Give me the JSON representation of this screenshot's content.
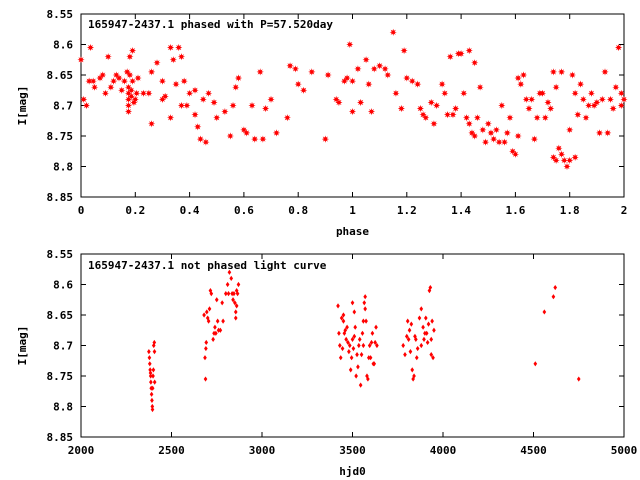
{
  "chart_data": [
    {
      "type": "scatter",
      "title": "165947-2437.1 phased with P=57.520day",
      "xlabel": "phase",
      "ylabel": "I[mag]",
      "xlim": [
        0,
        2
      ],
      "ylim": [
        8.85,
        8.55
      ],
      "y_inverted": true,
      "xticks": [
        "0",
        "0.2",
        "0.4",
        "0.6",
        "0.8",
        "1",
        "1.2",
        "1.4",
        "1.6",
        "1.8",
        "2"
      ],
      "yticks": [
        "8.55",
        "8.6",
        "8.65",
        "8.7",
        "8.75",
        "8.8",
        "8.85"
      ],
      "grid": false,
      "marker": "star",
      "color": "#ff0000",
      "points": [
        [
          0.0,
          8.625
        ],
        [
          0.01,
          8.69
        ],
        [
          0.02,
          8.7
        ],
        [
          0.03,
          8.66
        ],
        [
          0.035,
          8.605
        ],
        [
          0.045,
          8.66
        ],
        [
          0.05,
          8.67
        ],
        [
          0.07,
          8.655
        ],
        [
          0.08,
          8.65
        ],
        [
          0.09,
          8.68
        ],
        [
          0.1,
          8.62
        ],
        [
          0.11,
          8.67
        ],
        [
          0.12,
          8.66
        ],
        [
          0.13,
          8.65
        ],
        [
          0.14,
          8.655
        ],
        [
          0.15,
          8.675
        ],
        [
          0.16,
          8.66
        ],
        [
          0.17,
          8.645
        ],
        [
          0.175,
          8.67
        ],
        [
          0.175,
          8.68
        ],
        [
          0.175,
          8.69
        ],
        [
          0.175,
          8.7
        ],
        [
          0.175,
          8.71
        ],
        [
          0.18,
          8.62
        ],
        [
          0.18,
          8.65
        ],
        [
          0.185,
          8.675
        ],
        [
          0.185,
          8.685
        ],
        [
          0.19,
          8.61
        ],
        [
          0.19,
          8.66
        ],
        [
          0.195,
          8.695
        ],
        [
          0.2,
          8.69
        ],
        [
          0.205,
          8.68
        ],
        [
          0.21,
          8.655
        ],
        [
          0.23,
          8.68
        ],
        [
          0.25,
          8.68
        ],
        [
          0.26,
          8.645
        ],
        [
          0.26,
          8.73
        ],
        [
          0.28,
          8.63
        ],
        [
          0.3,
          8.66
        ],
        [
          0.3,
          8.69
        ],
        [
          0.31,
          8.685
        ],
        [
          0.33,
          8.605
        ],
        [
          0.33,
          8.72
        ],
        [
          0.34,
          8.625
        ],
        [
          0.35,
          8.665
        ],
        [
          0.36,
          8.605
        ],
        [
          0.37,
          8.62
        ],
        [
          0.37,
          8.7
        ],
        [
          0.38,
          8.66
        ],
        [
          0.39,
          8.7
        ],
        [
          0.4,
          8.68
        ],
        [
          0.42,
          8.675
        ],
        [
          0.42,
          8.715
        ],
        [
          0.43,
          8.735
        ],
        [
          0.44,
          8.755
        ],
        [
          0.45,
          8.69
        ],
        [
          0.46,
          8.76
        ],
        [
          0.47,
          8.68
        ],
        [
          0.49,
          8.695
        ],
        [
          0.5,
          8.72
        ],
        [
          0.53,
          8.71
        ],
        [
          0.55,
          8.75
        ],
        [
          0.56,
          8.7
        ],
        [
          0.57,
          8.67
        ],
        [
          0.58,
          8.655
        ],
        [
          0.6,
          8.74
        ],
        [
          0.61,
          8.745
        ],
        [
          0.63,
          8.7
        ],
        [
          0.64,
          8.755
        ],
        [
          0.66,
          8.645
        ],
        [
          0.67,
          8.755
        ],
        [
          0.68,
          8.705
        ],
        [
          0.7,
          8.69
        ],
        [
          0.72,
          8.745
        ],
        [
          0.76,
          8.72
        ],
        [
          0.77,
          8.635
        ],
        [
          0.79,
          8.64
        ],
        [
          0.8,
          8.665
        ],
        [
          0.82,
          8.675
        ],
        [
          0.85,
          8.645
        ],
        [
          0.9,
          8.755
        ],
        [
          0.91,
          8.65
        ],
        [
          0.94,
          8.69
        ],
        [
          0.95,
          8.695
        ],
        [
          0.97,
          8.66
        ],
        [
          0.98,
          8.655
        ],
        [
          0.99,
          8.6
        ],
        [
          1.0,
          8.66
        ],
        [
          1.0,
          8.71
        ],
        [
          1.02,
          8.64
        ],
        [
          1.03,
          8.695
        ],
        [
          1.05,
          8.625
        ],
        [
          1.06,
          8.665
        ],
        [
          1.07,
          8.71
        ],
        [
          1.08,
          8.64
        ],
        [
          1.1,
          8.635
        ],
        [
          1.12,
          8.64
        ],
        [
          1.13,
          8.65
        ],
        [
          1.15,
          8.58
        ],
        [
          1.16,
          8.68
        ],
        [
          1.18,
          8.705
        ],
        [
          1.19,
          8.61
        ],
        [
          1.2,
          8.655
        ],
        [
          1.22,
          8.66
        ],
        [
          1.24,
          8.665
        ],
        [
          1.25,
          8.705
        ],
        [
          1.26,
          8.715
        ],
        [
          1.27,
          8.72
        ],
        [
          1.29,
          8.695
        ],
        [
          1.3,
          8.73
        ],
        [
          1.31,
          8.7
        ],
        [
          1.33,
          8.665
        ],
        [
          1.34,
          8.68
        ],
        [
          1.35,
          8.715
        ],
        [
          1.36,
          8.62
        ],
        [
          1.37,
          8.715
        ],
        [
          1.38,
          8.705
        ],
        [
          1.39,
          8.615
        ],
        [
          1.4,
          8.615
        ],
        [
          1.41,
          8.68
        ],
        [
          1.42,
          8.72
        ],
        [
          1.43,
          8.73
        ],
        [
          1.43,
          8.61
        ],
        [
          1.44,
          8.745
        ],
        [
          1.45,
          8.63
        ],
        [
          1.45,
          8.75
        ],
        [
          1.46,
          8.72
        ],
        [
          1.47,
          8.67
        ],
        [
          1.48,
          8.74
        ],
        [
          1.49,
          8.76
        ],
        [
          1.5,
          8.73
        ],
        [
          1.51,
          8.745
        ],
        [
          1.52,
          8.755
        ],
        [
          1.53,
          8.74
        ],
        [
          1.54,
          8.76
        ],
        [
          1.55,
          8.7
        ],
        [
          1.56,
          8.76
        ],
        [
          1.57,
          8.745
        ],
        [
          1.58,
          8.72
        ],
        [
          1.59,
          8.775
        ],
        [
          1.6,
          8.78
        ],
        [
          1.61,
          8.75
        ],
        [
          1.61,
          8.655
        ],
        [
          1.62,
          8.665
        ],
        [
          1.63,
          8.65
        ],
        [
          1.64,
          8.69
        ],
        [
          1.65,
          8.705
        ],
        [
          1.66,
          8.69
        ],
        [
          1.67,
          8.755
        ],
        [
          1.68,
          8.72
        ],
        [
          1.69,
          8.68
        ],
        [
          1.7,
          8.68
        ],
        [
          1.71,
          8.72
        ],
        [
          1.72,
          8.695
        ],
        [
          1.73,
          8.705
        ],
        [
          1.74,
          8.645
        ],
        [
          1.74,
          8.785
        ],
        [
          1.75,
          8.79
        ],
        [
          1.75,
          8.67
        ],
        [
          1.76,
          8.77
        ],
        [
          1.77,
          8.78
        ],
        [
          1.77,
          8.645
        ],
        [
          1.78,
          8.79
        ],
        [
          1.79,
          8.8
        ],
        [
          1.8,
          8.79
        ],
        [
          1.8,
          8.74
        ],
        [
          1.81,
          8.65
        ],
        [
          1.82,
          8.785
        ],
        [
          1.82,
          8.68
        ],
        [
          1.83,
          8.715
        ],
        [
          1.84,
          8.665
        ],
        [
          1.85,
          8.69
        ],
        [
          1.86,
          8.72
        ],
        [
          1.87,
          8.7
        ],
        [
          1.88,
          8.68
        ],
        [
          1.89,
          8.7
        ],
        [
          1.9,
          8.695
        ],
        [
          1.91,
          8.745
        ],
        [
          1.92,
          8.69
        ],
        [
          1.93,
          8.645
        ],
        [
          1.94,
          8.745
        ],
        [
          1.95,
          8.69
        ],
        [
          1.96,
          8.705
        ],
        [
          1.97,
          8.67
        ],
        [
          1.98,
          8.605
        ],
        [
          1.99,
          8.68
        ],
        [
          2.0,
          8.69
        ],
        [
          1.99,
          8.7
        ]
      ]
    },
    {
      "type": "scatter",
      "title": "165947-2437.1 not phased light curve",
      "xlabel": "hjd0",
      "ylabel": "I[mag]",
      "xlim": [
        2000,
        5000
      ],
      "ylim": [
        8.85,
        8.55
      ],
      "y_inverted": true,
      "xticks": [
        "2000",
        "2500",
        "3000",
        "3500",
        "4000",
        "4500",
        "5000"
      ],
      "yticks": [
        "8.55",
        "8.6",
        "8.65",
        "8.7",
        "8.75",
        "8.8",
        "8.85"
      ],
      "grid": false,
      "marker": "diamond",
      "color": "#ff0000",
      "points": [
        [
          2375,
          8.71
        ],
        [
          2378,
          8.72
        ],
        [
          2380,
          8.73
        ],
        [
          2382,
          8.74
        ],
        [
          2384,
          8.745
        ],
        [
          2385,
          8.75
        ],
        [
          2386,
          8.76
        ],
        [
          2388,
          8.77
        ],
        [
          2390,
          8.78
        ],
        [
          2392,
          8.79
        ],
        [
          2394,
          8.8
        ],
        [
          2395,
          8.805
        ],
        [
          2396,
          8.77
        ],
        [
          2398,
          8.75
        ],
        [
          2400,
          8.74
        ],
        [
          2402,
          8.7
        ],
        [
          2405,
          8.695
        ],
        [
          2406,
          8.71
        ],
        [
          2407,
          8.76
        ],
        [
          2680,
          8.65
        ],
        [
          2685,
          8.72
        ],
        [
          2688,
          8.755
        ],
        [
          2690,
          8.705
        ],
        [
          2692,
          8.695
        ],
        [
          2695,
          8.645
        ],
        [
          2700,
          8.655
        ],
        [
          2705,
          8.66
        ],
        [
          2710,
          8.64
        ],
        [
          2715,
          8.61
        ],
        [
          2720,
          8.615
        ],
        [
          2730,
          8.69
        ],
        [
          2735,
          8.68
        ],
        [
          2740,
          8.67
        ],
        [
          2745,
          8.68
        ],
        [
          2750,
          8.625
        ],
        [
          2755,
          8.66
        ],
        [
          2760,
          8.675
        ],
        [
          2770,
          8.675
        ],
        [
          2780,
          8.63
        ],
        [
          2785,
          8.66
        ],
        [
          2800,
          8.615
        ],
        [
          2810,
          8.6
        ],
        [
          2815,
          8.615
        ],
        [
          2820,
          8.58
        ],
        [
          2830,
          8.59
        ],
        [
          2835,
          8.615
        ],
        [
          2840,
          8.625
        ],
        [
          2845,
          8.615
        ],
        [
          2850,
          8.63
        ],
        [
          2855,
          8.645
        ],
        [
          2860,
          8.61
        ],
        [
          2865,
          8.615
        ],
        [
          2870,
          8.6
        ],
        [
          2860,
          8.635
        ],
        [
          2855,
          8.655
        ],
        [
          3420,
          8.635
        ],
        [
          3425,
          8.68
        ],
        [
          3430,
          8.7
        ],
        [
          3435,
          8.72
        ],
        [
          3440,
          8.655
        ],
        [
          3445,
          8.705
        ],
        [
          3450,
          8.66
        ],
        [
          3455,
          8.68
        ],
        [
          3460,
          8.675
        ],
        [
          3465,
          8.69
        ],
        [
          3470,
          8.67
        ],
        [
          3475,
          8.695
        ],
        [
          3480,
          8.71
        ],
        [
          3485,
          8.7
        ],
        [
          3490,
          8.74
        ],
        [
          3495,
          8.72
        ],
        [
          3500,
          8.69
        ],
        [
          3505,
          8.705
        ],
        [
          3510,
          8.685
        ],
        [
          3515,
          8.67
        ],
        [
          3520,
          8.75
        ],
        [
          3525,
          8.715
        ],
        [
          3530,
          8.735
        ],
        [
          3535,
          8.7
        ],
        [
          3540,
          8.69
        ],
        [
          3545,
          8.765
        ],
        [
          3550,
          8.715
        ],
        [
          3555,
          8.68
        ],
        [
          3560,
          8.7
        ],
        [
          3565,
          8.63
        ],
        [
          3570,
          8.64
        ],
        [
          3575,
          8.66
        ],
        [
          3580,
          8.75
        ],
        [
          3585,
          8.755
        ],
        [
          3590,
          8.72
        ],
        [
          3595,
          8.7
        ],
        [
          3600,
          8.72
        ],
        [
          3605,
          8.695
        ],
        [
          3610,
          8.68
        ],
        [
          3615,
          8.73
        ],
        [
          3620,
          8.73
        ],
        [
          3625,
          8.695
        ],
        [
          3630,
          8.67
        ],
        [
          3635,
          8.7
        ],
        [
          3500,
          8.63
        ],
        [
          3510,
          8.645
        ],
        [
          3450,
          8.65
        ],
        [
          3560,
          8.66
        ],
        [
          3570,
          8.62
        ],
        [
          3780,
          8.7
        ],
        [
          3790,
          8.715
        ],
        [
          3800,
          8.685
        ],
        [
          3805,
          8.66
        ],
        [
          3810,
          8.69
        ],
        [
          3815,
          8.675
        ],
        [
          3820,
          8.71
        ],
        [
          3825,
          8.665
        ],
        [
          3830,
          8.74
        ],
        [
          3835,
          8.755
        ],
        [
          3840,
          8.75
        ],
        [
          3845,
          8.685
        ],
        [
          3850,
          8.69
        ],
        [
          3855,
          8.72
        ],
        [
          3860,
          8.705
        ],
        [
          3870,
          8.655
        ],
        [
          3880,
          8.64
        ],
        [
          3890,
          8.67
        ],
        [
          3895,
          8.69
        ],
        [
          3900,
          8.68
        ],
        [
          3905,
          8.655
        ],
        [
          3910,
          8.68
        ],
        [
          3915,
          8.695
        ],
        [
          3920,
          8.665
        ],
        [
          3925,
          8.61
        ],
        [
          3930,
          8.605
        ],
        [
          3935,
          8.715
        ],
        [
          3940,
          8.66
        ],
        [
          3945,
          8.72
        ],
        [
          3950,
          8.675
        ],
        [
          3935,
          8.69
        ],
        [
          3880,
          8.7
        ],
        [
          4510,
          8.73
        ],
        [
          4560,
          8.645
        ],
        [
          4610,
          8.62
        ],
        [
          4620,
          8.605
        ],
        [
          4750,
          8.755
        ]
      ]
    }
  ]
}
